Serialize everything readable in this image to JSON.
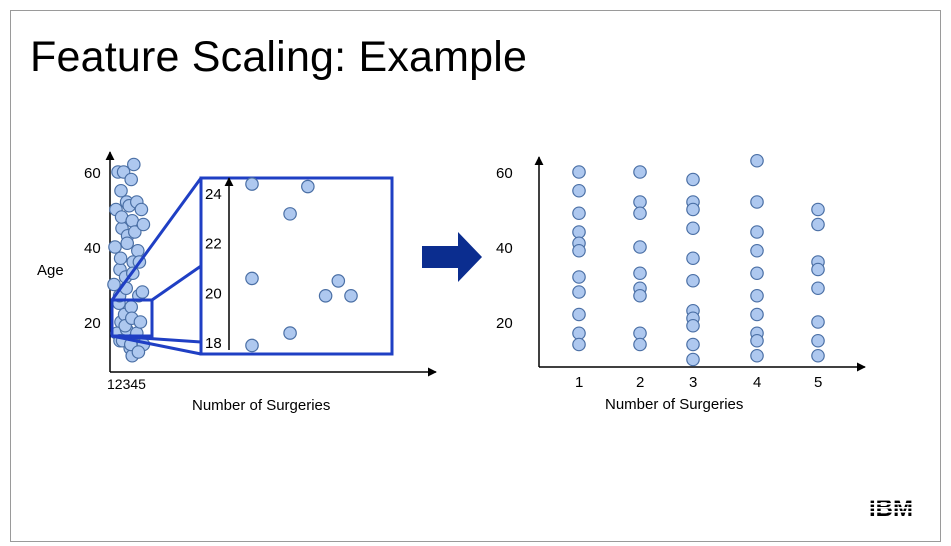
{
  "title": "Feature Scaling: Example",
  "logo_text": "IBM",
  "colors": {
    "point_fill": "#aec8ef",
    "point_stroke": "#4a6fa5",
    "highlight": "#1f3fc4",
    "arrow": "#0b2d8f"
  },
  "chart_data": [
    {
      "type": "scatter",
      "name": "unscaled",
      "xlabel": "Number of Surgeries",
      "ylabel": "Age",
      "x_tick_labels": "12345",
      "yticks": [
        20,
        40,
        60
      ],
      "ylim": [
        8,
        64
      ],
      "xlim": [
        0,
        70
      ],
      "points": [
        [
          1,
          60
        ],
        [
          1,
          55
        ],
        [
          1,
          50
        ],
        [
          1,
          45
        ],
        [
          1,
          40
        ],
        [
          1,
          34
        ],
        [
          1,
          30
        ],
        [
          1,
          25
        ],
        [
          1,
          20
        ],
        [
          1,
          17
        ],
        [
          1,
          15
        ],
        [
          2,
          60
        ],
        [
          2,
          52
        ],
        [
          2,
          48
        ],
        [
          2,
          43
        ],
        [
          2,
          37
        ],
        [
          2,
          32
        ],
        [
          2,
          27
        ],
        [
          2,
          22
        ],
        [
          2,
          18
        ],
        [
          2,
          15
        ],
        [
          3,
          58
        ],
        [
          3,
          51
        ],
        [
          3,
          47
        ],
        [
          3,
          41
        ],
        [
          3,
          36
        ],
        [
          3,
          29
        ],
        [
          3,
          24
        ],
        [
          3,
          19
        ],
        [
          3,
          13
        ],
        [
          3,
          11
        ],
        [
          4,
          62
        ],
        [
          4,
          52
        ],
        [
          4,
          44
        ],
        [
          4,
          39
        ],
        [
          4,
          33
        ],
        [
          4,
          27
        ],
        [
          4,
          21
        ],
        [
          4,
          17
        ],
        [
          4,
          14
        ],
        [
          5,
          50
        ],
        [
          5,
          46
        ],
        [
          5,
          36
        ],
        [
          5,
          28
        ],
        [
          5,
          20
        ],
        [
          5,
          14
        ],
        [
          5,
          12
        ]
      ]
    },
    {
      "type": "scatter",
      "name": "zoom-inset",
      "yticks": [
        18,
        20,
        22,
        24
      ],
      "ylim": [
        17.6,
        25
      ],
      "points": [
        [
          1.0,
          24.4
        ],
        [
          2.5,
          23.2
        ],
        [
          3.2,
          24.3
        ],
        [
          1.0,
          20.6
        ],
        [
          3.9,
          19.9
        ],
        [
          4.4,
          20.5
        ],
        [
          4.9,
          19.9
        ],
        [
          1.0,
          17.9
        ],
        [
          2.5,
          18.4
        ]
      ]
    },
    {
      "type": "scatter",
      "name": "scaled",
      "xlabel": "Number of Surgeries",
      "xticks": [
        1,
        2,
        3,
        4,
        5
      ],
      "yticks": [
        20,
        40,
        60
      ],
      "xlim": [
        0.3,
        5.85
      ],
      "ylim": [
        7,
        65
      ],
      "points": [
        [
          1,
          60
        ],
        [
          1,
          55
        ],
        [
          1,
          49
        ],
        [
          1,
          44
        ],
        [
          1,
          41
        ],
        [
          1,
          39
        ],
        [
          1,
          32
        ],
        [
          1,
          28
        ],
        [
          1,
          22
        ],
        [
          1,
          17
        ],
        [
          1,
          14
        ],
        [
          2,
          60
        ],
        [
          2,
          52
        ],
        [
          2,
          49
        ],
        [
          2,
          40
        ],
        [
          2,
          33
        ],
        [
          2,
          29
        ],
        [
          2,
          27
        ],
        [
          2,
          17
        ],
        [
          2,
          14
        ],
        [
          3,
          58
        ],
        [
          3,
          52
        ],
        [
          3,
          50
        ],
        [
          3,
          45
        ],
        [
          3,
          37
        ],
        [
          3,
          31
        ],
        [
          3,
          23
        ],
        [
          3,
          21
        ],
        [
          3,
          19
        ],
        [
          3,
          14
        ],
        [
          3,
          10
        ],
        [
          4,
          63
        ],
        [
          4,
          52
        ],
        [
          4,
          44
        ],
        [
          4,
          39
        ],
        [
          4,
          33
        ],
        [
          4,
          27
        ],
        [
          4,
          22
        ],
        [
          4,
          17
        ],
        [
          4,
          15
        ],
        [
          4,
          11
        ],
        [
          5,
          50
        ],
        [
          5,
          46
        ],
        [
          5,
          36
        ],
        [
          5,
          34
        ],
        [
          5,
          29
        ],
        [
          5,
          20
        ],
        [
          5,
          15
        ],
        [
          5,
          11
        ]
      ]
    }
  ]
}
